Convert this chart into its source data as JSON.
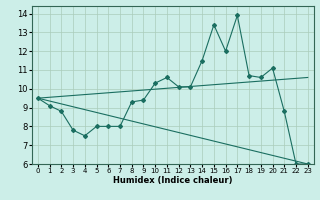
{
  "xlabel": "Humidex (Indice chaleur)",
  "bg_color": "#cceee8",
  "grid_color": "#aaccbb",
  "line_color": "#1a6e60",
  "xlim": [
    -0.5,
    23.5
  ],
  "ylim": [
    6,
    14.4
  ],
  "xticks": [
    0,
    1,
    2,
    3,
    4,
    5,
    6,
    7,
    8,
    9,
    10,
    11,
    12,
    13,
    14,
    15,
    16,
    17,
    18,
    19,
    20,
    21,
    22,
    23
  ],
  "yticks": [
    6,
    7,
    8,
    9,
    10,
    11,
    12,
    13,
    14
  ],
  "series1_x": [
    0,
    1,
    2,
    3,
    4,
    5,
    6,
    7,
    8,
    9,
    10,
    11,
    12,
    13,
    14,
    15,
    16,
    17,
    18,
    19,
    20,
    21,
    22,
    23
  ],
  "series1_y": [
    9.5,
    9.1,
    8.8,
    7.8,
    7.5,
    8.0,
    8.0,
    8.0,
    9.3,
    9.4,
    10.3,
    10.6,
    10.1,
    10.1,
    11.5,
    13.4,
    12.0,
    13.9,
    10.7,
    10.6,
    11.1,
    8.8,
    6.0,
    6.0
  ],
  "series2_x": [
    0,
    23
  ],
  "series2_y": [
    9.5,
    10.6
  ],
  "series3_x": [
    0,
    23
  ],
  "series3_y": [
    9.5,
    6.0
  ]
}
